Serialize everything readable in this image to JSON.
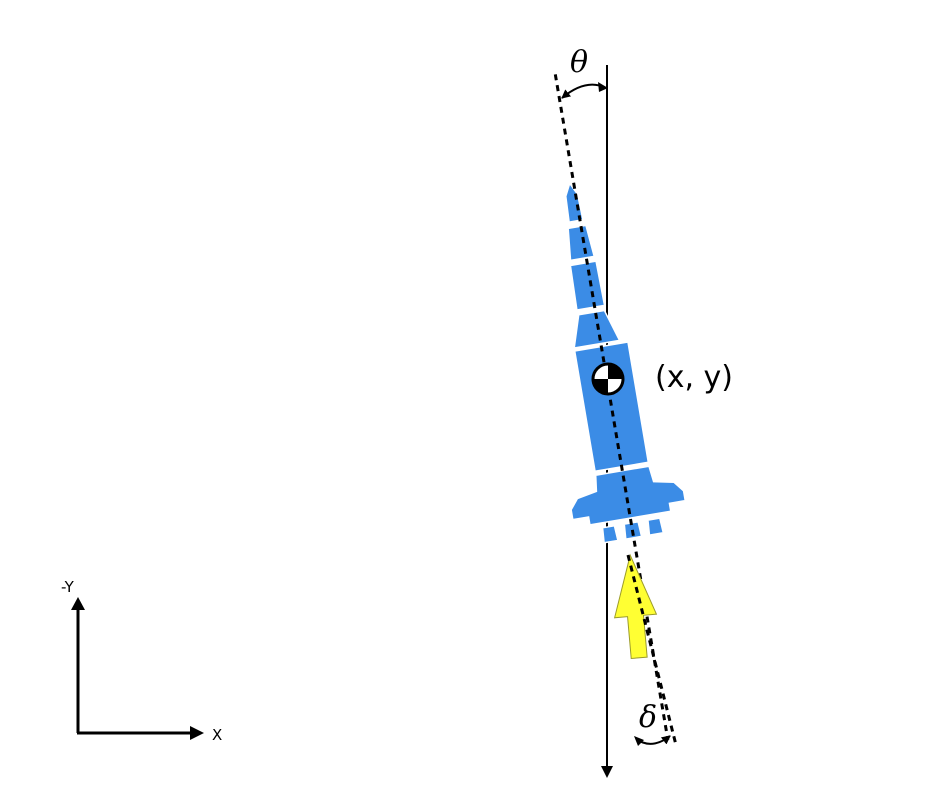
{
  "labels": {
    "theta": "θ",
    "delta": "δ",
    "position": "(x, y)",
    "axis_y": "-Y",
    "axis_x": "X"
  },
  "colors": {
    "rocket_body": "#3b8ce6",
    "rocket_outline": "#ffffff",
    "thrust_arrow": "#ffff33",
    "thrust_arrow_outline": "#9c9c2a",
    "line": "#000000",
    "background": "#ffffff"
  }
}
